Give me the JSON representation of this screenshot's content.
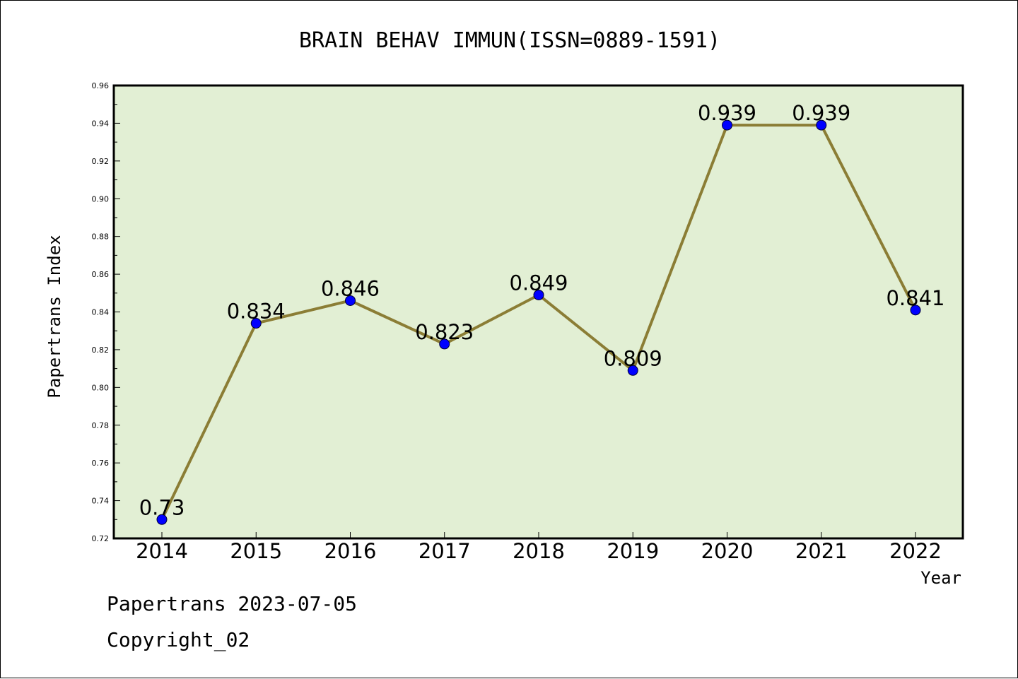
{
  "chart_data": {
    "type": "line",
    "title": "BRAIN BEHAV IMMUN(ISSN=0889-1591)",
    "xlabel": "Year",
    "ylabel": "Papertrans Index",
    "categories": [
      "2014",
      "2015",
      "2016",
      "2017",
      "2018",
      "2019",
      "2020",
      "2021",
      "2022"
    ],
    "values": [
      0.73,
      0.834,
      0.846,
      0.823,
      0.849,
      0.809,
      0.939,
      0.939,
      0.841
    ],
    "value_labels": [
      "0.73",
      "0.834",
      "0.846",
      "0.823",
      "0.849",
      "0.809",
      "0.939",
      "0.939",
      "0.841"
    ],
    "ylim": [
      0.72,
      0.96
    ],
    "yticks": [
      "0.72",
      "0.74",
      "0.76",
      "0.78",
      "0.80",
      "0.82",
      "0.84",
      "0.86",
      "0.88",
      "0.90",
      "0.92",
      "0.94",
      "0.96"
    ],
    "grid": false,
    "legend": "none",
    "colors": {
      "plot_background": "#e2efd4",
      "line": "#8b7d35",
      "marker": "#0000ff"
    }
  },
  "footer": {
    "line1": "Papertrans 2023-07-05",
    "line2": "Copyright_02"
  }
}
